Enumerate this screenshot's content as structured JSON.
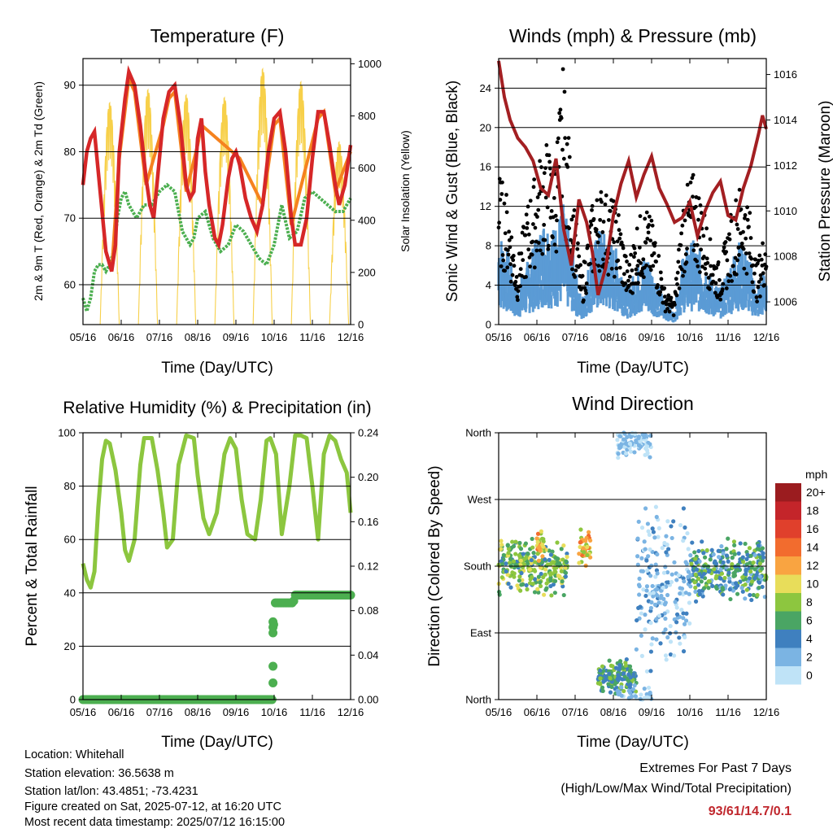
{
  "chart_data": [
    {
      "id": "temp",
      "type": "line",
      "title": "Temperature (F)",
      "xlabel": "Time (Day/UTC)",
      "ylabel": "2m & 9m T (Red, Orange) & 2m Td (Green)",
      "y2label": "Solar Insolation (Yellow)",
      "x_ticks": [
        "05/16",
        "06/16",
        "07/16",
        "08/16",
        "09/16",
        "10/16",
        "11/16",
        "12/16"
      ],
      "ylim": [
        54,
        94
      ],
      "y_ticks": [
        60,
        70,
        80,
        90
      ],
      "y2lim": [
        0,
        1020
      ],
      "y2_ticks": [
        0,
        200,
        400,
        600,
        800,
        1000
      ],
      "grid": true,
      "series": [
        {
          "key": "t2m",
          "color": "#d62728",
          "x": [
            0,
            0.1,
            0.2,
            0.3,
            0.35,
            0.5,
            0.6,
            0.7,
            0.75,
            0.85,
            0.95,
            1.1,
            1.2,
            1.35,
            1.5,
            1.65,
            1.75,
            1.85,
            1.95,
            2.1,
            2.25,
            2.4,
            2.55,
            2.7,
            2.8,
            2.9,
            3.0,
            3.1,
            3.2,
            3.3,
            3.45,
            3.55,
            3.65,
            3.8,
            3.9,
            4.0,
            4.1,
            4.25,
            4.4,
            4.55,
            4.7,
            4.85,
            5.0,
            5.15,
            5.3,
            5.45,
            5.55,
            5.7,
            5.85,
            6.0,
            6.15,
            6.3,
            6.45,
            6.6,
            6.7,
            6.85,
            7.0
          ],
          "y": [
            75,
            80,
            82,
            83,
            80,
            71,
            65,
            63,
            62,
            66,
            80,
            88,
            92,
            90,
            84,
            76,
            72,
            70,
            76,
            85,
            89,
            90,
            84,
            75,
            73,
            74,
            82,
            85,
            77,
            72,
            67,
            66,
            69,
            76,
            79,
            80,
            78,
            73,
            70,
            68,
            72,
            80,
            85,
            86,
            80,
            70,
            66,
            66,
            70,
            79,
            86,
            86,
            81,
            75,
            72,
            75,
            81
          ]
        },
        {
          "key": "t9m",
          "color": "#f5821f",
          "x": [
            0.6,
            0.75,
            0.95,
            1.2,
            1.35,
            1.65,
            2.1,
            2.25,
            2.4,
            2.7,
            3.0,
            3.1,
            4.1,
            4.7,
            5.0,
            5.15,
            5.45,
            6.15,
            6.3,
            6.6,
            7.0
          ],
          "y": [
            65,
            62,
            79,
            91,
            89,
            75,
            84,
            88,
            89,
            74,
            81,
            84,
            79,
            72,
            84,
            85,
            69,
            85,
            86,
            74,
            80
          ]
        },
        {
          "key": "td2m",
          "color": "#4caf50",
          "x": [
            0,
            0.1,
            0.2,
            0.3,
            0.4,
            0.5,
            0.6,
            0.7,
            0.8,
            0.9,
            1.0,
            1.1,
            1.2,
            1.4,
            1.6,
            1.8,
            2.0,
            2.2,
            2.4,
            2.6,
            2.8,
            2.9,
            3.0,
            3.2,
            3.4,
            3.6,
            3.8,
            4.0,
            4.2,
            4.4,
            4.6,
            4.8,
            5.0,
            5.2,
            5.4,
            5.6,
            5.8,
            6.0,
            6.2,
            6.4,
            6.6,
            6.8,
            7.0
          ],
          "y": [
            58,
            56,
            58,
            62,
            63,
            63,
            62,
            63,
            65,
            70,
            73,
            74,
            72,
            70,
            72,
            72,
            74,
            75,
            74,
            68,
            66,
            67,
            70,
            71,
            67,
            65,
            66,
            69,
            68,
            66,
            64,
            63,
            66,
            72,
            67,
            68,
            73,
            74,
            73,
            72,
            71,
            71,
            73
          ]
        },
        {
          "key": "solar",
          "color": "#f7d04a",
          "axis": "y2",
          "peak": [
            850,
            900,
            880,
            870,
            980,
            930,
            700,
            850
          ]
        }
      ]
    },
    {
      "id": "wind",
      "type": "scatter",
      "title": "Winds (mph) & Pressure (mb)",
      "xlabel": "Time (Day/UTC)",
      "ylabel": "Sonic Wind & Gust (Blue, Black)",
      "y2label": "Station Pressure (Maroon)",
      "x_ticks": [
        "05/16",
        "06/16",
        "07/16",
        "08/16",
        "09/16",
        "10/16",
        "11/16",
        "12/16"
      ],
      "ylim": [
        0,
        27
      ],
      "y_ticks": [
        0,
        4,
        8,
        12,
        16,
        20,
        24
      ],
      "y2lim": [
        1005.0,
        1016.7
      ],
      "y2_ticks": [
        1006,
        1008,
        1010,
        1012,
        1014,
        1016
      ],
      "grid": true,
      "series": [
        {
          "key": "wind",
          "color": "#5b9bd5",
          "level": [
            8,
            6,
            3,
            5,
            7,
            9,
            8,
            10,
            6,
            2,
            6,
            8,
            7,
            6,
            3,
            5,
            6,
            4,
            2,
            1,
            6,
            7,
            6,
            4,
            3,
            5,
            7,
            6,
            3,
            5
          ]
        },
        {
          "key": "gust",
          "color": "#000000",
          "level": [
            13,
            11,
            5,
            10,
            13,
            16,
            14,
            22,
            12,
            4,
            10,
            12,
            11,
            10,
            5,
            9,
            10,
            8,
            3,
            2,
            11,
            13,
            11,
            7,
            5,
            9,
            12,
            11,
            5,
            9
          ]
        },
        {
          "key": "pressure",
          "color": "#a31f22",
          "x": [
            0,
            0.15,
            0.3,
            0.5,
            0.7,
            0.9,
            1.1,
            1.3,
            1.5,
            1.7,
            1.9,
            2.1,
            2.3,
            2.45,
            2.6,
            2.8,
            3.0,
            3.2,
            3.4,
            3.6,
            3.8,
            4.0,
            4.2,
            4.4,
            4.6,
            4.8,
            5.0,
            5.2,
            5.4,
            5.6,
            5.8,
            6.0,
            6.2,
            6.4,
            6.6,
            6.8,
            6.9,
            7.0
          ],
          "y": [
            1016.6,
            1015.0,
            1014.0,
            1013.2,
            1012.8,
            1012.2,
            1011.0,
            1010.7,
            1012.3,
            1009.2,
            1007.6,
            1010.5,
            1009.5,
            1008.2,
            1006.3,
            1007.5,
            1009.8,
            1011.2,
            1012.2,
            1010.6,
            1011.6,
            1012.4,
            1011.0,
            1010.3,
            1009.5,
            1009.7,
            1010.4,
            1008.9,
            1010.0,
            1010.8,
            1011.3,
            1009.8,
            1009.6,
            1011.0,
            1012.0,
            1013.4,
            1014.2,
            1013.6
          ]
        }
      ]
    },
    {
      "id": "rh",
      "type": "line",
      "title": "Relative Humidity (%) & Precipitation (in)",
      "xlabel": "Time (Day/UTC)",
      "ylabel": "Percent & Total Rainfall",
      "x_ticks": [
        "05/16",
        "06/16",
        "07/16",
        "08/16",
        "09/16",
        "10/16",
        "11/16",
        "12/16"
      ],
      "ylim": [
        0,
        100
      ],
      "y_ticks": [
        0,
        20,
        40,
        60,
        80,
        100
      ],
      "y2lim": [
        0,
        0.24
      ],
      "y2_ticks": [
        "0.00",
        "0.04",
        "0.08",
        "0.12",
        "0.16",
        "0.20",
        "0.24"
      ],
      "grid": true,
      "series": [
        {
          "key": "rh",
          "color": "#8cc63f",
          "x": [
            0,
            0.1,
            0.2,
            0.3,
            0.4,
            0.5,
            0.6,
            0.7,
            0.85,
            1.0,
            1.1,
            1.2,
            1.35,
            1.5,
            1.6,
            1.8,
            1.95,
            2.1,
            2.2,
            2.35,
            2.5,
            2.7,
            2.9,
            3.0,
            3.15,
            3.3,
            3.5,
            3.7,
            3.85,
            4.0,
            4.15,
            4.3,
            4.5,
            4.65,
            4.8,
            4.9,
            5.05,
            5.2,
            5.4,
            5.55,
            5.7,
            5.85,
            6.0,
            6.15,
            6.3,
            6.45,
            6.6,
            6.75,
            6.9,
            7.0
          ],
          "y": [
            51,
            45,
            42,
            48,
            72,
            90,
            97,
            96,
            86,
            70,
            56,
            52,
            60,
            88,
            98,
            98,
            86,
            70,
            57,
            60,
            88,
            99,
            98,
            84,
            68,
            62,
            70,
            92,
            98,
            94,
            75,
            62,
            60,
            75,
            97,
            98,
            92,
            62,
            80,
            99,
            99,
            98,
            80,
            60,
            92,
            99,
            97,
            90,
            85,
            70
          ]
        },
        {
          "key": "precip",
          "color": "#4caf50",
          "axis": "y2",
          "x": [
            0,
            4.95,
            4.96,
            4.97,
            4.98,
            4.99,
            5.0,
            5.1,
            5.3,
            5.5,
            5.55,
            5.7,
            5.9,
            6.1,
            6.3,
            6.5,
            6.7,
            6.9,
            7.0
          ],
          "y": [
            0,
            0,
            0.015,
            0.03,
            0.06,
            0.07,
            0.087,
            0.087,
            0.087,
            0.087,
            0.094,
            0.094,
            0.094,
            0.094,
            0.094,
            0.094,
            0.094,
            0.094,
            0.094
          ]
        }
      ]
    },
    {
      "id": "dir",
      "type": "scatter",
      "title": "Wind Direction",
      "xlabel": "Time (Day/UTC)",
      "ylabel": "Direction (Colored By Speed)",
      "x_ticks": [
        "05/16",
        "06/16",
        "07/16",
        "08/16",
        "09/16",
        "10/16",
        "11/16",
        "12/16"
      ],
      "y_ticks": [
        "North",
        "East",
        "South",
        "West",
        "North"
      ],
      "ylim": [
        0,
        360
      ],
      "grid": true,
      "legend": {
        "title": "mph",
        "placement": "right",
        "labels": [
          "20+",
          "18",
          "16",
          "14",
          "12",
          "10",
          "8",
          "6",
          "4",
          "2",
          "0"
        ],
        "colors": [
          "#9b1c1f",
          "#c4252a",
          "#e0402c",
          "#f26c2e",
          "#f9a441",
          "#e8dd5a",
          "#8dc63f",
          "#4aa564",
          "#3f80bf",
          "#7bb4e3",
          "#bfe3f7"
        ]
      },
      "clusters": [
        {
          "x0": 0.0,
          "x1": 1.8,
          "dir": 180,
          "spread": 40,
          "speed": [
            4,
            10
          ]
        },
        {
          "x0": 1.0,
          "x1": 1.2,
          "dir": 205,
          "spread": 25,
          "speed": [
            8,
            14
          ]
        },
        {
          "x0": 2.1,
          "x1": 2.4,
          "dir": 205,
          "spread": 25,
          "speed": [
            8,
            14
          ]
        },
        {
          "x0": 2.6,
          "x1": 3.6,
          "dir": 30,
          "spread": 25,
          "speed": [
            3,
            8
          ]
        },
        {
          "x0": 3.1,
          "x1": 4.0,
          "dir": 350,
          "spread": 30,
          "speed": [
            0,
            3
          ]
        },
        {
          "x0": 3.6,
          "x1": 5.0,
          "dir": 150,
          "spread": 120,
          "speed": [
            0,
            4
          ]
        },
        {
          "x0": 5.0,
          "x1": 7.0,
          "dir": 175,
          "spread": 45,
          "speed": [
            2,
            8
          ]
        }
      ]
    }
  ],
  "info": {
    "location": "Location: Whitehall",
    "elevation": "Station elevation: 36.5638 m",
    "latlon": "Station lat/lon: 43.4851; -73.4231",
    "created": "Figure created on Sat, 2025-07-12, at 16:20 UTC",
    "recent": "Most recent data timestamp: 2025/07/12 16:15:00"
  },
  "extremes": {
    "title": "Extremes For Past 7 Days",
    "subtitle": "(High/Low/Max Wind/Total Precipitation)",
    "value": "93/61/14.7/0.1",
    "value_color": "#c0272d"
  }
}
